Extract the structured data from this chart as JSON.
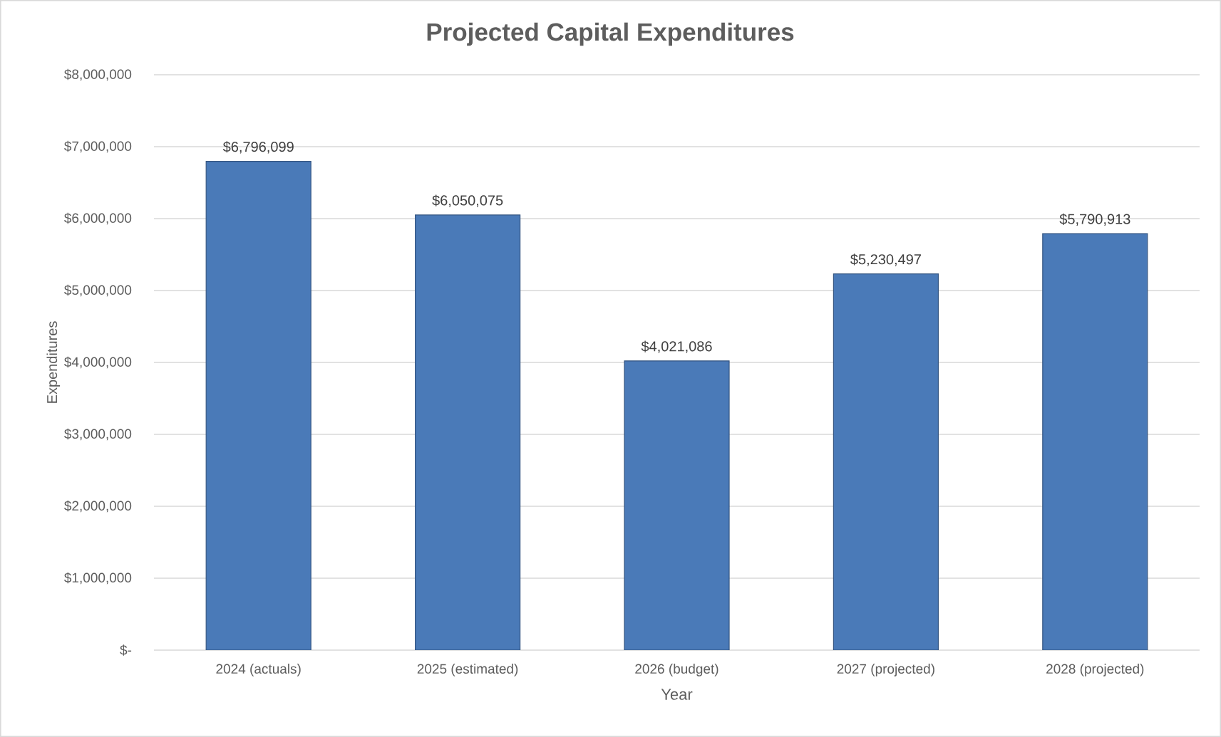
{
  "chart_data": {
    "type": "bar",
    "title": "Projected Capital Expenditures",
    "xlabel": "Year",
    "ylabel": "Expenditures",
    "categories": [
      "2024 (actuals)",
      "2025 (estimated)",
      "2026 (budget)",
      "2027 (projected)",
      "2028 (projected)"
    ],
    "values": [
      6796099,
      6050075,
      4021086,
      5230497,
      5790913
    ],
    "value_labels": [
      "$6,796,099",
      "$6,050,075",
      "$4,021,086",
      "$5,230,497",
      "$5,790,913"
    ],
    "color": "#4a7ab8",
    "ylim": [
      0,
      8000000
    ],
    "yticks": [
      {
        "value": 0,
        "label": "$-"
      },
      {
        "value": 1000000,
        "label": "$1,000,000"
      },
      {
        "value": 2000000,
        "label": "$2,000,000"
      },
      {
        "value": 3000000,
        "label": "$3,000,000"
      },
      {
        "value": 4000000,
        "label": "$4,000,000"
      },
      {
        "value": 5000000,
        "label": "$5,000,000"
      },
      {
        "value": 6000000,
        "label": "$6,000,000"
      },
      {
        "value": 7000000,
        "label": "$7,000,000"
      },
      {
        "value": 8000000,
        "label": "$8,000,000"
      }
    ],
    "grid": "y"
  }
}
